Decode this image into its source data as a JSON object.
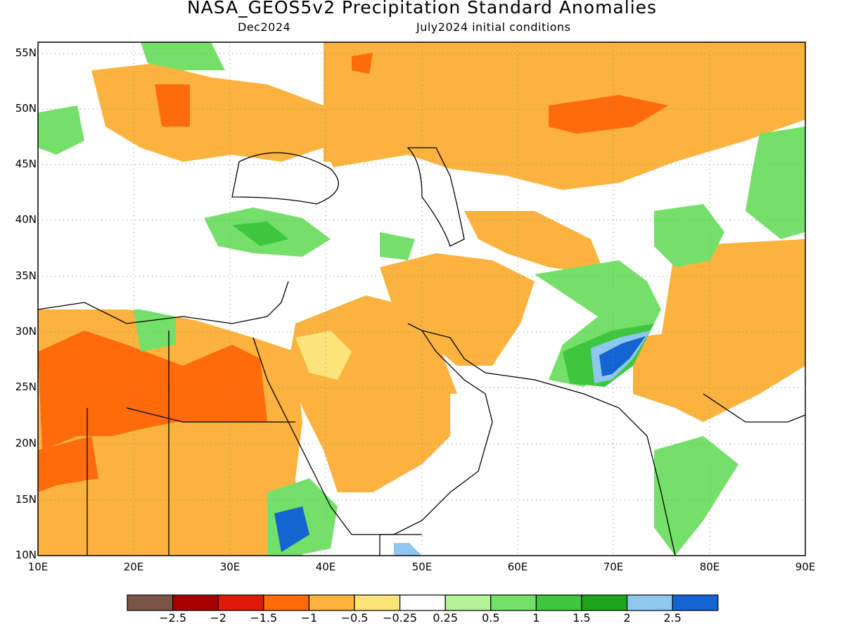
{
  "title": "NASA_GEOS5v2 Precipitation Standard Anomalies",
  "subtitle_left": "Dec2024",
  "subtitle_right": "July2024 initial conditions",
  "map": {
    "lon_range": [
      10,
      90
    ],
    "lat_range": [
      10,
      56
    ],
    "lon_ticks": [
      "10E",
      "20E",
      "30E",
      "40E",
      "50E",
      "60E",
      "70E",
      "80E",
      "90E"
    ],
    "lat_ticks": [
      "55N",
      "50N",
      "45N",
      "40N",
      "35N",
      "30N",
      "25N",
      "20N",
      "15N",
      "10N"
    ],
    "gridlines": "dotted"
  },
  "colorbar": {
    "colors": [
      "#7a5545",
      "#a50000",
      "#e01a0a",
      "#ff6a0a",
      "#fbb23e",
      "#fde47a",
      "#ffffff",
      "#b4f29a",
      "#74e06a",
      "#3ec63e",
      "#1ea51e",
      "#8ec8ee",
      "#1464d2"
    ],
    "labels": [
      "−2.5",
      "−2",
      "−1.5",
      "−1",
      "−0.5",
      "−0.25",
      "0.25",
      "0.5",
      "1",
      "1.5",
      "2",
      "2.5"
    ]
  }
}
